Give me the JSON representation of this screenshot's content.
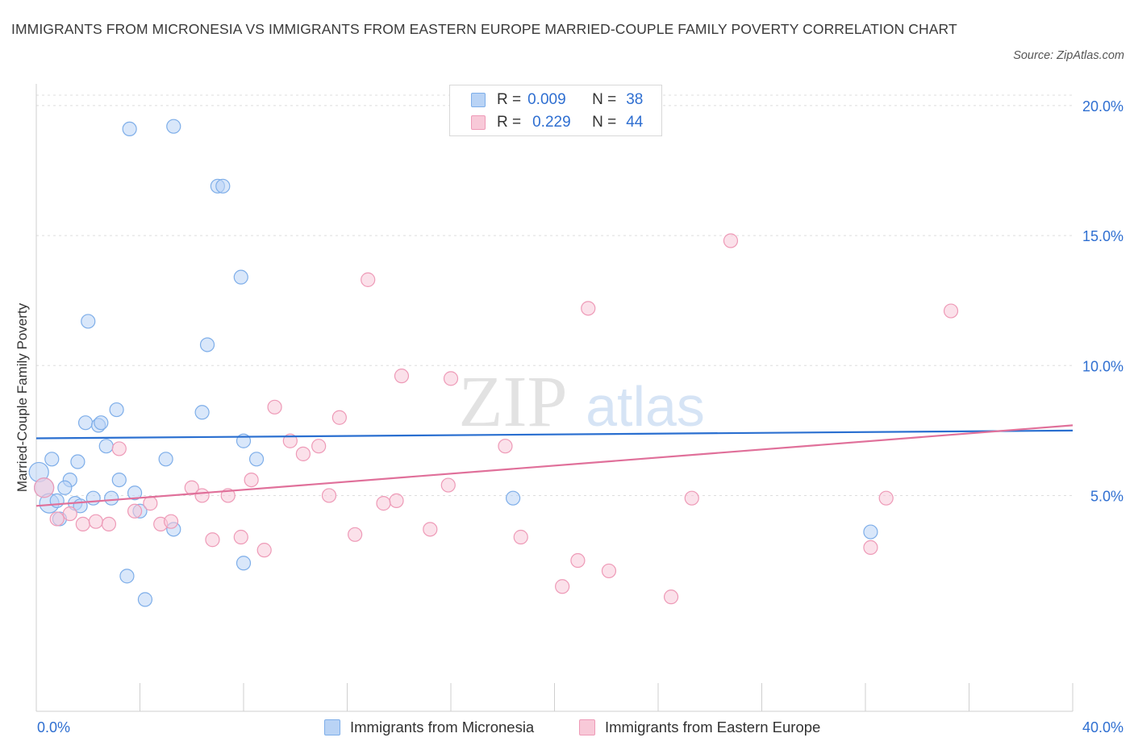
{
  "title": "IMMIGRANTS FROM MICRONESIA VS IMMIGRANTS FROM EASTERN EUROPE MARRIED-COUPLE FAMILY POVERTY CORRELATION CHART",
  "source": "Source: ZipAtlas.com",
  "watermark": {
    "zip": "ZIP",
    "atlas": "atlas"
  },
  "colors": {
    "blue": "#7eaee9",
    "blue_fill": "#b9d3f5",
    "blue_line": "#2a6fd0",
    "pink": "#ee9ab7",
    "pink_fill": "#f8c9d8",
    "pink_line": "#e0709a",
    "axis_text": "#2f6fd1",
    "grid": "#dddddd"
  },
  "legend_top": {
    "rows": [
      {
        "r_label": "R =",
        "r_value": "0.009",
        "n_label": "N =",
        "n_value": "38",
        "series": "blue"
      },
      {
        "r_label": "R =",
        "r_value": "0.229",
        "n_label": "N =",
        "n_value": "44",
        "series": "pink"
      }
    ]
  },
  "chart_data": {
    "type": "scatter",
    "title": "IMMIGRANTS FROM MICRONESIA VS IMMIGRANTS FROM EASTERN EUROPE MARRIED-COUPLE FAMILY POVERTY CORRELATION CHART",
    "xlabel": "",
    "ylabel": "Married-Couple Family Poverty",
    "xlim": [
      0,
      40
    ],
    "ylim": [
      0,
      20.4
    ],
    "x_tick_labels": [
      "0.0%",
      "40.0%"
    ],
    "y_ticks": [
      5,
      10,
      15,
      20
    ],
    "y_tick_labels": [
      "5.0%",
      "10.0%",
      "15.0%",
      "20.0%"
    ],
    "grid": true,
    "legend_position": "bottom",
    "series": [
      {
        "name": "Immigrants from Micronesia",
        "color": "blue",
        "R": 0.009,
        "N": 38,
        "trend": {
          "x": [
            0,
            40
          ],
          "y": [
            7.2,
            7.5
          ]
        },
        "points": [
          [
            3.6,
            19.1
          ],
          [
            5.3,
            19.2
          ],
          [
            7.0,
            16.9
          ],
          [
            7.2,
            16.9
          ],
          [
            7.9,
            13.4
          ],
          [
            2.0,
            11.7
          ],
          [
            6.6,
            10.8
          ],
          [
            3.1,
            8.3
          ],
          [
            6.4,
            8.2
          ],
          [
            1.9,
            7.8
          ],
          [
            2.4,
            7.7
          ],
          [
            2.5,
            7.8
          ],
          [
            8.0,
            7.1
          ],
          [
            2.7,
            6.9
          ],
          [
            0.6,
            6.4
          ],
          [
            1.6,
            6.3
          ],
          [
            5.0,
            6.4
          ],
          [
            8.5,
            6.4
          ],
          [
            0.1,
            5.9
          ],
          [
            1.3,
            5.6
          ],
          [
            3.2,
            5.6
          ],
          [
            0.3,
            5.3
          ],
          [
            1.1,
            5.3
          ],
          [
            3.8,
            5.1
          ],
          [
            2.2,
            4.9
          ],
          [
            2.9,
            4.9
          ],
          [
            0.5,
            4.7
          ],
          [
            0.8,
            4.8
          ],
          [
            1.5,
            4.7
          ],
          [
            1.7,
            4.6
          ],
          [
            4.0,
            4.4
          ],
          [
            0.9,
            4.1
          ],
          [
            5.3,
            3.7
          ],
          [
            18.4,
            4.9
          ],
          [
            32.2,
            3.6
          ],
          [
            3.5,
            1.9
          ],
          [
            8.0,
            2.4
          ],
          [
            4.2,
            1.0
          ]
        ]
      },
      {
        "name": "Immigrants from Eastern Europe",
        "color": "pink",
        "R": 0.229,
        "N": 44,
        "trend": {
          "x": [
            0,
            40
          ],
          "y": [
            4.6,
            7.7
          ]
        },
        "points": [
          [
            26.8,
            14.8
          ],
          [
            12.8,
            13.3
          ],
          [
            21.3,
            12.2
          ],
          [
            35.3,
            12.1
          ],
          [
            14.1,
            9.6
          ],
          [
            16.0,
            9.5
          ],
          [
            9.2,
            8.4
          ],
          [
            11.7,
            8.0
          ],
          [
            3.2,
            6.8
          ],
          [
            9.8,
            7.1
          ],
          [
            10.3,
            6.6
          ],
          [
            10.9,
            6.9
          ],
          [
            18.1,
            6.9
          ],
          [
            8.3,
            5.6
          ],
          [
            15.9,
            5.4
          ],
          [
            6.0,
            5.3
          ],
          [
            6.4,
            5.0
          ],
          [
            7.4,
            5.0
          ],
          [
            11.3,
            5.0
          ],
          [
            13.9,
            4.8
          ],
          [
            13.4,
            4.7
          ],
          [
            25.3,
            4.9
          ],
          [
            32.8,
            4.9
          ],
          [
            4.4,
            4.7
          ],
          [
            3.8,
            4.4
          ],
          [
            0.3,
            5.3
          ],
          [
            1.3,
            4.3
          ],
          [
            0.8,
            4.1
          ],
          [
            1.8,
            3.9
          ],
          [
            2.3,
            4.0
          ],
          [
            2.8,
            3.9
          ],
          [
            4.8,
            3.9
          ],
          [
            5.2,
            4.0
          ],
          [
            12.3,
            3.5
          ],
          [
            15.2,
            3.7
          ],
          [
            18.7,
            3.4
          ],
          [
            6.8,
            3.3
          ],
          [
            7.9,
            3.4
          ],
          [
            8.8,
            2.9
          ],
          [
            32.2,
            3.0
          ],
          [
            20.9,
            2.5
          ],
          [
            22.1,
            2.1
          ],
          [
            20.3,
            1.5
          ],
          [
            24.5,
            1.1
          ]
        ]
      }
    ]
  },
  "legend_bottom": [
    {
      "label": "Immigrants from Micronesia",
      "series": "blue"
    },
    {
      "label": "Immigrants from Eastern Europe",
      "series": "pink"
    }
  ]
}
